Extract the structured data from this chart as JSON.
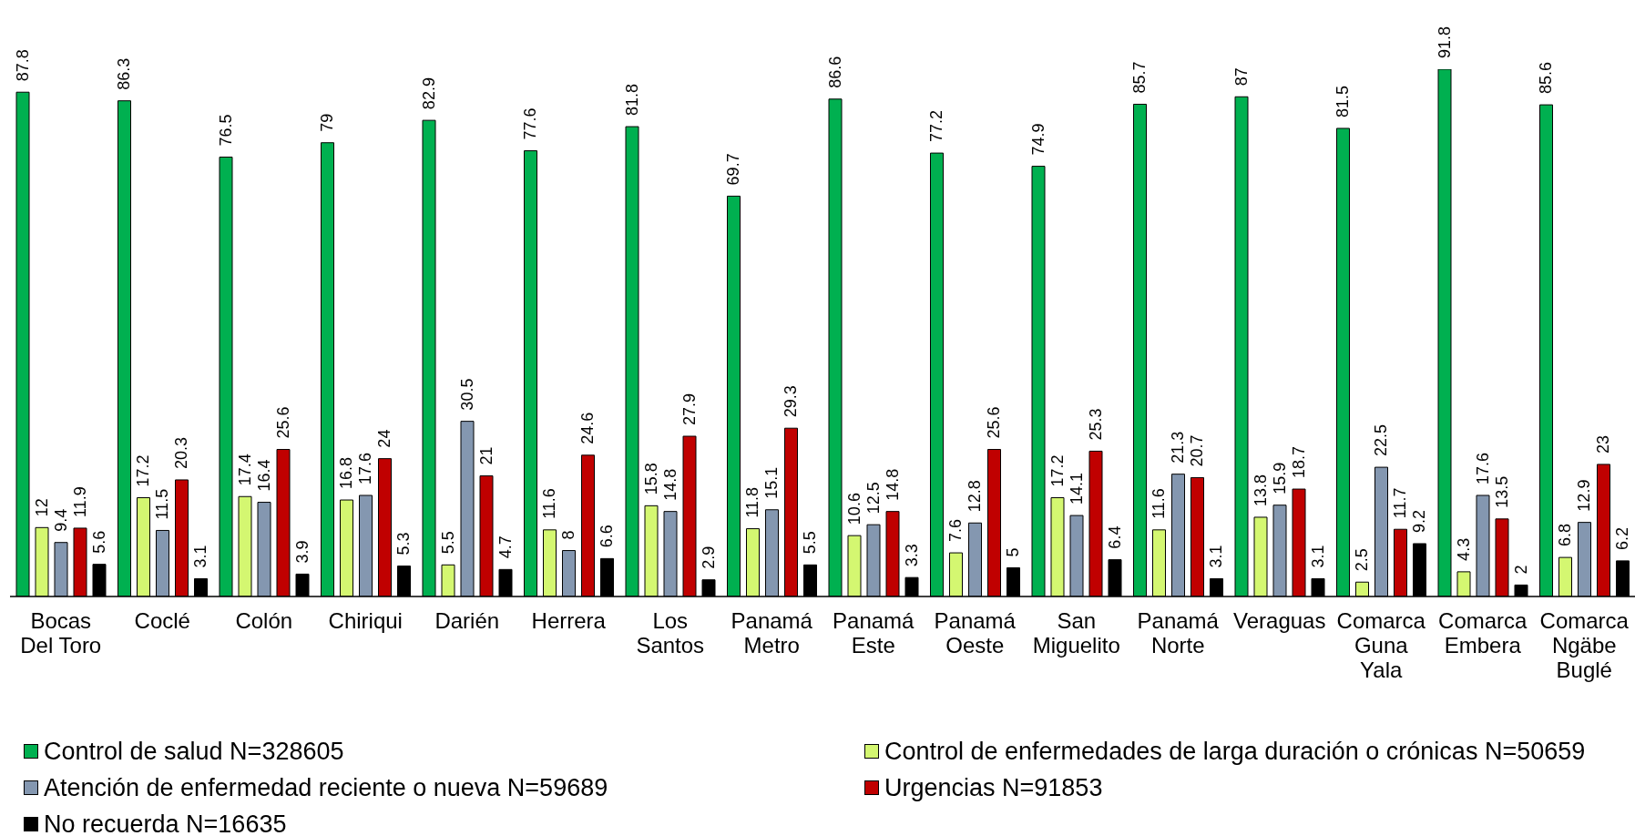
{
  "chart_data": {
    "type": "bar",
    "categories": [
      "Bocas Del Toro",
      "Coclé",
      "Colón",
      "Chiriqui",
      "Darién",
      "Herrera",
      "Los Santos",
      "Panamá Metro",
      "Panamá Este",
      "Panamá Oeste",
      "San Miguelito",
      "Panamá Norte",
      "Veraguas",
      "Comarca Guna Yala",
      "Comarca Embera",
      "Comarca Ngäbe Buglé"
    ],
    "series": [
      {
        "name": "Control de salud N=328605",
        "color": "#00b050",
        "values": [
          87.8,
          86.3,
          76.5,
          79,
          82.9,
          77.6,
          81.8,
          69.7,
          86.6,
          77.2,
          74.9,
          85.7,
          87,
          81.5,
          91.8,
          85.6
        ]
      },
      {
        "name": "Control de enfermedades de larga duración o crónicas N=50659",
        "color": "#d4f771",
        "values": [
          12,
          17.2,
          17.4,
          16.8,
          5.5,
          11.6,
          15.8,
          11.8,
          10.6,
          7.6,
          17.2,
          11.6,
          13.8,
          2.5,
          4.3,
          6.8
        ]
      },
      {
        "name": "Atención de enfermedad reciente o nueva N=59689",
        "color": "#8497b0",
        "values": [
          9.4,
          11.5,
          16.4,
          17.6,
          30.5,
          8,
          14.8,
          15.1,
          12.5,
          12.8,
          14.1,
          21.3,
          15.9,
          22.5,
          17.6,
          12.9
        ]
      },
      {
        "name": "Urgencias N=91853",
        "color": "#c00000",
        "values": [
          11.9,
          20.3,
          25.6,
          24,
          21,
          24.6,
          27.9,
          29.3,
          14.8,
          25.6,
          25.3,
          20.7,
          18.7,
          11.7,
          13.5,
          23
        ]
      },
      {
        "name": "No recuerda N=16635",
        "color": "#000000",
        "values": [
          5.6,
          3.1,
          3.9,
          5.3,
          4.7,
          6.6,
          2.9,
          5.5,
          3.3,
          5,
          6.4,
          3.1,
          3.1,
          9.2,
          2,
          6.2
        ]
      }
    ],
    "data_labels": true,
    "legend": "bottom",
    "tick_labels": "x"
  }
}
